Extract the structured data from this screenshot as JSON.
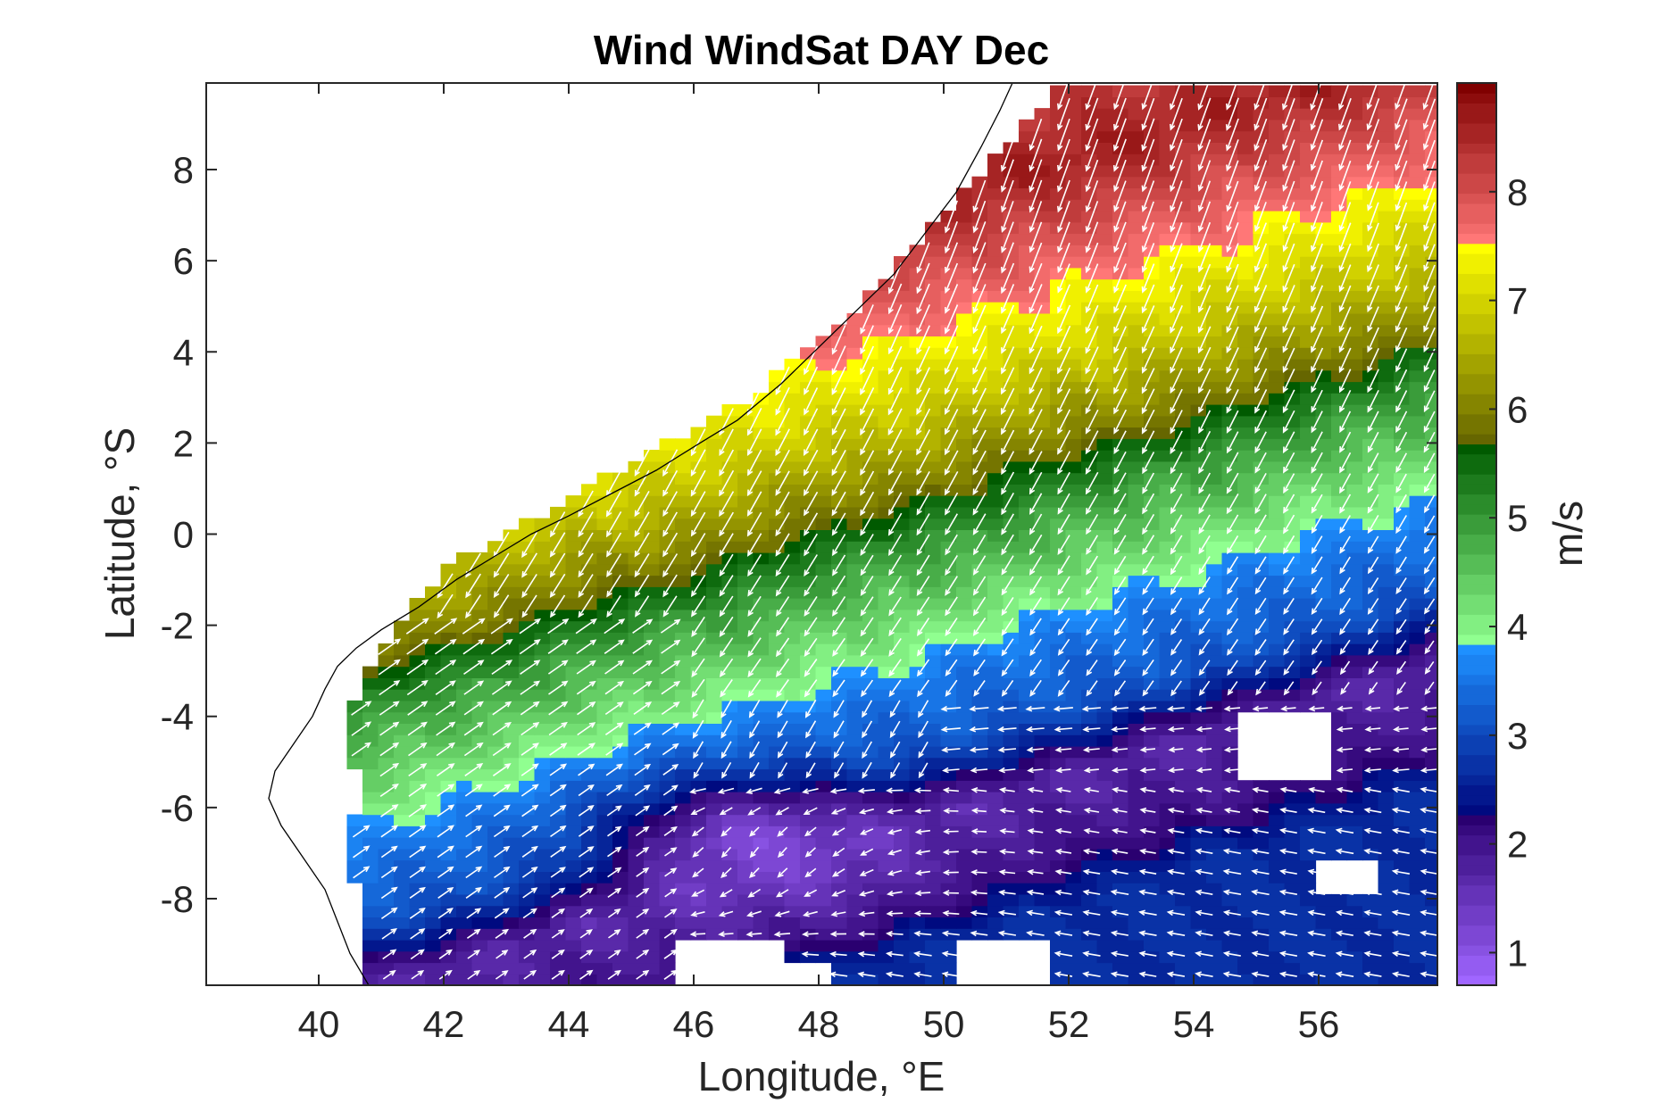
{
  "chart_data": {
    "type": "heatmap",
    "title": "Wind WindSat DAY Dec",
    "xlabel": "Longitude, °E",
    "ylabel": "Latitude, °S",
    "xlim": [
      38.2,
      57.9
    ],
    "ylim": [
      -9.9,
      9.9
    ],
    "xticks": [
      40,
      42,
      44,
      46,
      48,
      50,
      52,
      54,
      56
    ],
    "yticks": [
      8,
      6,
      4,
      2,
      0,
      -2,
      -4,
      -6,
      -8
    ],
    "colorbar": {
      "label": "m/s",
      "range": [
        0.7,
        9.0
      ],
      "ticks": [
        1,
        2,
        3,
        4,
        5,
        6,
        7,
        8
      ],
      "segments": [
        {
          "from": 0.7,
          "to": 2.3,
          "low": "#a066ff",
          "high": "#2a0070"
        },
        {
          "from": 2.3,
          "to": 3.8,
          "low": "#000a80",
          "high": "#1e90ff"
        },
        {
          "from": 3.8,
          "to": 5.65,
          "low": "#90ff90",
          "high": "#005a00"
        },
        {
          "from": 5.65,
          "to": 7.5,
          "low": "#666600",
          "high": "#ffff00"
        },
        {
          "from": 7.5,
          "to": 9.0,
          "low": "#ff7777",
          "high": "#800000"
        }
      ]
    },
    "speed_bands": [
      {
        "lat": -9.9,
        "s": 2.7
      },
      {
        "lat": -8.5,
        "s": 2.0
      },
      {
        "lat": -7.0,
        "s": 1.7
      },
      {
        "lat": -5.5,
        "s": 3.1
      },
      {
        "lat": -4.0,
        "s": 3.5
      },
      {
        "lat": -2.5,
        "s": 4.2
      },
      {
        "lat": -1.0,
        "s": 4.9
      },
      {
        "lat": 0.5,
        "s": 6.0
      },
      {
        "lat": 2.0,
        "s": 6.8
      },
      {
        "lat": 3.5,
        "s": 7.4
      },
      {
        "lat": 5.0,
        "s": 8.0
      },
      {
        "lat": 6.5,
        "s": 8.6
      },
      {
        "lat": 8.5,
        "s": 8.2
      },
      {
        "lat": 9.9,
        "s": 8.0
      }
    ],
    "band_tilt_deg_per_deg_lon": -0.42,
    "band_tilt_ref_lon": 48,
    "low_wind_center": {
      "lon": 47.0,
      "lat": -6.8,
      "speed": 1.2
    },
    "coastline": [
      [
        40.8,
        -9.9
      ],
      [
        40.5,
        -9.2
      ],
      [
        40.3,
        -8.5
      ],
      [
        40.1,
        -7.8
      ],
      [
        39.7,
        -7.0
      ],
      [
        39.4,
        -6.4
      ],
      [
        39.2,
        -5.8
      ],
      [
        39.3,
        -5.2
      ],
      [
        39.6,
        -4.6
      ],
      [
        39.9,
        -4.0
      ],
      [
        40.1,
        -3.4
      ],
      [
        40.3,
        -2.9
      ],
      [
        40.6,
        -2.5
      ],
      [
        41.0,
        -2.1
      ],
      [
        41.6,
        -1.6
      ],
      [
        42.2,
        -1.0
      ],
      [
        42.8,
        -0.5
      ],
      [
        43.4,
        0.0
      ],
      [
        44.0,
        0.4
      ],
      [
        44.7,
        0.9
      ],
      [
        45.4,
        1.4
      ],
      [
        46.1,
        2.0
      ],
      [
        46.7,
        2.5
      ],
      [
        47.4,
        3.3
      ],
      [
        48.0,
        4.1
      ],
      [
        48.6,
        4.9
      ],
      [
        49.2,
        5.7
      ],
      [
        49.7,
        6.6
      ],
      [
        50.2,
        7.5
      ],
      [
        50.6,
        8.5
      ],
      [
        50.9,
        9.3
      ],
      [
        51.1,
        9.9
      ]
    ],
    "data_boundary_west": [
      [
        51.8,
        9.75
      ],
      [
        51.2,
        8.8
      ],
      [
        50.6,
        8.0
      ],
      [
        50.1,
        7.1
      ],
      [
        49.5,
        6.3
      ],
      [
        48.9,
        5.4
      ],
      [
        48.3,
        4.6
      ],
      [
        47.6,
        3.8
      ],
      [
        47.0,
        3.1
      ],
      [
        46.3,
        2.5
      ],
      [
        45.6,
        2.0
      ],
      [
        44.8,
        1.4
      ],
      [
        44.1,
        0.9
      ],
      [
        43.4,
        0.3
      ],
      [
        42.7,
        -0.2
      ],
      [
        42.1,
        -0.7
      ],
      [
        41.6,
        -1.4
      ],
      [
        41.2,
        -2.1
      ],
      [
        40.9,
        -2.7
      ],
      [
        40.7,
        -3.3
      ],
      [
        40.5,
        -3.9
      ],
      [
        40.5,
        -4.6
      ],
      [
        40.6,
        -5.2
      ],
      [
        40.6,
        -6.0
      ],
      [
        40.5,
        -7.0
      ],
      [
        40.6,
        -8.0
      ],
      [
        40.6,
        -9.0
      ],
      [
        40.7,
        -9.9
      ]
    ],
    "data_east_lon": 57.8,
    "data_north_lat": 9.75,
    "gaps": [
      {
        "lon": [
          54.8,
          56.2
        ],
        "lat": [
          -5.3,
          -3.9
        ]
      },
      {
        "lon": [
          56.0,
          57.0
        ],
        "lat": [
          -7.8,
          -7.1
        ]
      },
      {
        "lon": [
          45.8,
          47.5
        ],
        "lat": [
          -9.9,
          -8.8
        ]
      },
      {
        "lon": [
          50.3,
          51.6
        ],
        "lat": [
          -9.9,
          -8.8
        ]
      },
      {
        "lon": [
          47.5,
          48.2
        ],
        "lat": [
          -9.9,
          -9.3
        ]
      }
    ],
    "arrow_grid_step_deg": 0.45,
    "wind_regimes": [
      {
        "region": "north of -3°S",
        "direction": "toward southwest (from NE)"
      },
      {
        "region": "-9°S to -4°S east of 48°E",
        "direction": "toward west / west-northwest"
      },
      {
        "region": "west of 46°E",
        "direction": "toward northeast"
      }
    ]
  }
}
